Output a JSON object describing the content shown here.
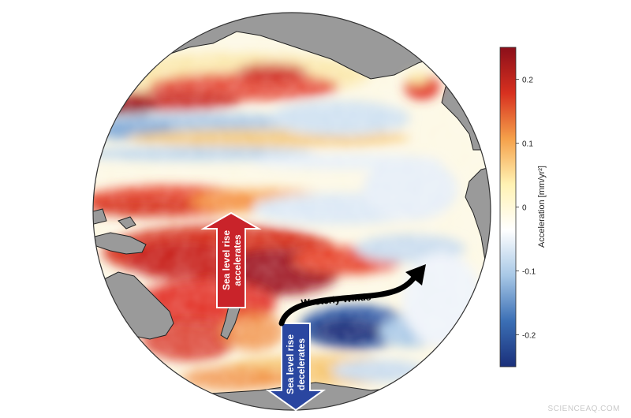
{
  "map": {
    "projection": "orthographic",
    "region": "Pacific Ocean",
    "land_color": "#9a9a9a",
    "coastline_color": "#222222"
  },
  "colorbar": {
    "label": "Acceleration [mm/yr²]",
    "range": [
      -0.25,
      0.25
    ],
    "tick_labels": [
      "0.2",
      "0.1",
      "0",
      "-0.1",
      "-0.2"
    ],
    "colors": [
      "#1a2f7a",
      "#3b6fb5",
      "#a8c8e6",
      "#ffffff",
      "#fff2b3",
      "#f5a04a",
      "#d7301f",
      "#8b0f1a"
    ]
  },
  "annotations": {
    "accelerates": {
      "text_line1": "Sea level rise",
      "text_line2": "accelerates",
      "color": "#c9232a",
      "direction": "up"
    },
    "decelerates": {
      "text_line1": "Sea level rise",
      "text_line2": "decelerates",
      "color": "#2a46a0",
      "direction": "down"
    },
    "winds": {
      "text": "Westerly Winds",
      "color": "#000000"
    }
  },
  "watermark": "SCIENCEAQ.COM"
}
